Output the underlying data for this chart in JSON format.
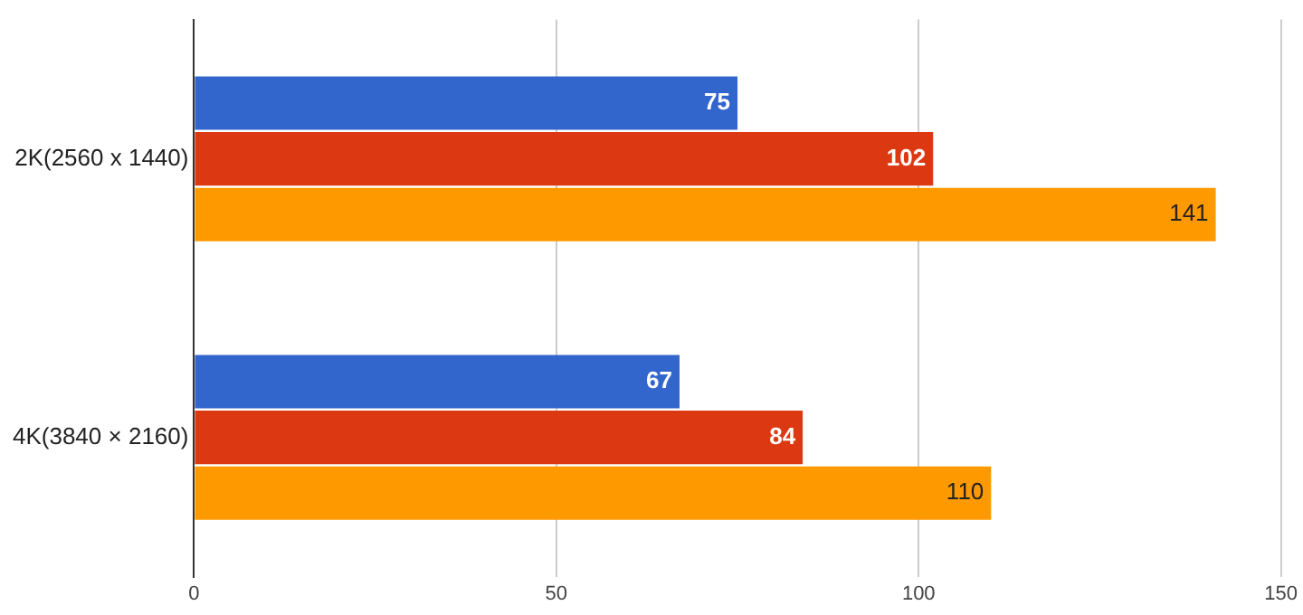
{
  "chart_data": {
    "type": "bar",
    "orientation": "horizontal",
    "categories": [
      "2K(2560 x 1440)",
      "4K(3840 × 2160)"
    ],
    "series": [
      {
        "color": "#3366cc",
        "values": [
          75,
          67
        ]
      },
      {
        "color": "#dc3912",
        "values": [
          102,
          84
        ]
      },
      {
        "color": "#ff9900",
        "values": [
          141,
          110
        ]
      }
    ],
    "xlim": [
      0,
      150
    ],
    "xticks": [
      0,
      50,
      100,
      150
    ],
    "grid": "x",
    "legend": false,
    "data_labels": true
  }
}
